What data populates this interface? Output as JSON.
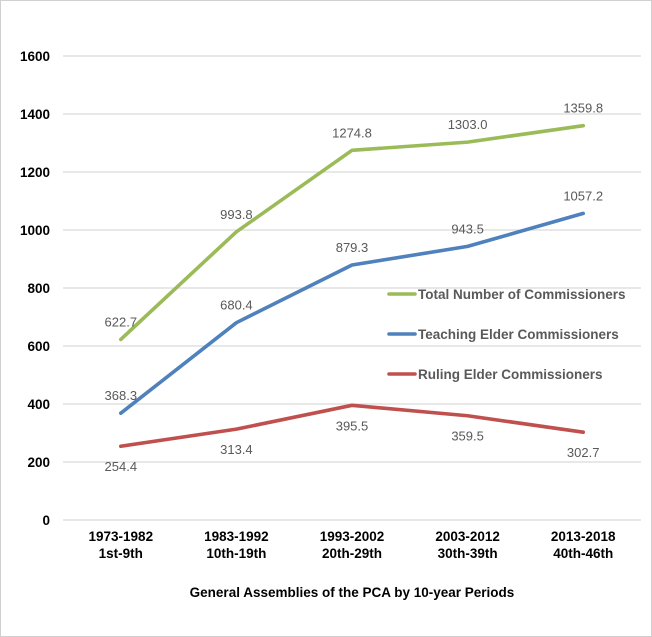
{
  "chart_data": {
    "type": "line",
    "title": "",
    "xlabel": "General Assemblies of the PCA by 10-year Periods",
    "ylabel": "",
    "categories": [
      [
        "1973-1982",
        "1st-9th"
      ],
      [
        "1983-1992",
        "10th-19th"
      ],
      [
        "1993-2002",
        "20th-29th"
      ],
      [
        "2003-2012",
        "30th-39th"
      ],
      [
        "2013-2018",
        "40th-46th"
      ]
    ],
    "ylim": [
      0,
      1600
    ],
    "ytick_step": 200,
    "yticks": [
      "0",
      "200",
      "400",
      "600",
      "800",
      "1000",
      "1200",
      "1400",
      "1600"
    ],
    "grid": true,
    "legend_position": "middle-right",
    "series": [
      {
        "name": "Total Number of Commissioners",
        "color": "#9BBB59",
        "values": [
          622.7,
          993.8,
          1274.8,
          1303.0,
          1359.8
        ],
        "labels": [
          "622.7",
          "993.8",
          "1274.8",
          "1303.0",
          "1359.8"
        ],
        "label_position": "above"
      },
      {
        "name": "Teaching Elder Commissioners",
        "color": "#4F81BD",
        "values": [
          368.3,
          680.4,
          879.3,
          943.5,
          1057.2
        ],
        "labels": [
          "368.3",
          "680.4",
          "879.3",
          "943.5",
          "1057.2"
        ],
        "label_position": "above"
      },
      {
        "name": "Ruling Elder Commissioners",
        "color": "#C0504D",
        "values": [
          254.4,
          313.4,
          395.5,
          359.5,
          302.7
        ],
        "labels": [
          "254.4",
          "313.4",
          "395.5",
          "359.5",
          "302.7"
        ],
        "label_position": "below"
      }
    ],
    "colors": {
      "grid": "#D9D9D9",
      "border": "#D0D0D0",
      "tick_label": "#000000",
      "data_label": "#595959",
      "legend_label": "#595959",
      "background": "#FFFFFF"
    }
  }
}
